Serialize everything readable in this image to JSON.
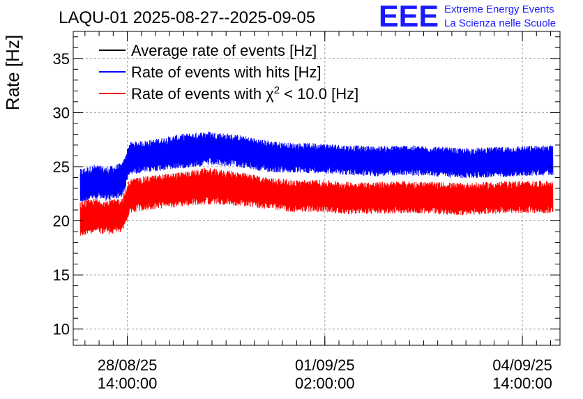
{
  "header": {
    "title": "LAQU-01 2025-08-27--2025-09-05",
    "logo_text": "EEE",
    "logo_line1": "Extreme Energy Events",
    "logo_line2": "La Scienza nelle Scuole"
  },
  "colors": {
    "average": "#000000",
    "hits": "#0000ff",
    "chi2": "#ff0000",
    "logo": "#1a1aff",
    "grid": "#a0a0a0"
  },
  "chart_data": {
    "type": "line",
    "title": "LAQU-01 2025-08-27--2025-09-05",
    "ylabel": "Rate [Hz]",
    "xlabel": "",
    "ylim": [
      8.5,
      37.5
    ],
    "xlim": [
      "2025-08-27T15:00:00",
      "2025-09-05T06:00:00"
    ],
    "grid": true,
    "legend_position": "top-left",
    "y_ticks": [
      10,
      15,
      20,
      25,
      30,
      35
    ],
    "x_ticks": [
      {
        "at": "2025-08-28T14:00:00",
        "line1": "28/08/25",
        "line2": "14:00:00"
      },
      {
        "at": "2025-09-01T02:00:00",
        "line1": "01/09/25",
        "line2": "02:00:00"
      },
      {
        "at": "2025-09-04T14:00:00",
        "line1": "04/09/25",
        "line2": "14:00:00"
      }
    ],
    "legend": [
      {
        "label_main": "Average rate of events [Hz]",
        "label_sup": "",
        "label_tail": "",
        "color": "#000000"
      },
      {
        "label_main": "Rate of events with hits [Hz]",
        "label_sup": "",
        "label_tail": "",
        "color": "#0000ff"
      },
      {
        "label_main": "Rate of events with χ",
        "label_sup": "2",
        "label_tail": " < 10.0 [Hz]",
        "color": "#ff0000"
      }
    ],
    "series": [
      {
        "name": "Rate of events with hits [Hz]",
        "color": "#0000ff",
        "x": [
          "2025-08-27T18:00:00",
          "2025-08-28T00:00:00",
          "2025-08-28T06:00:00",
          "2025-08-28T12:00:00",
          "2025-08-28T15:00:00",
          "2025-08-29T00:00:00",
          "2025-08-29T12:00:00",
          "2025-08-30T00:00:00",
          "2025-08-30T12:00:00",
          "2025-08-31T00:00:00",
          "2025-08-31T12:00:00",
          "2025-09-01T00:00:00",
          "2025-09-01T12:00:00",
          "2025-09-02T00:00:00",
          "2025-09-02T12:00:00",
          "2025-09-03T00:00:00",
          "2025-09-03T12:00:00",
          "2025-09-04T00:00:00",
          "2025-09-04T12:00:00",
          "2025-09-05T00:00:00",
          "2025-09-05T03:00:00"
        ],
        "values": [
          23.2,
          23.6,
          23.4,
          23.8,
          25.8,
          26.0,
          26.4,
          26.7,
          26.5,
          26.0,
          25.8,
          25.8,
          25.6,
          25.5,
          25.6,
          25.5,
          25.3,
          25.4,
          25.5,
          25.6,
          25.6
        ],
        "spread": [
          1.6,
          1.6,
          1.6,
          1.6,
          1.5,
          1.5,
          1.6,
          1.6,
          1.5,
          1.5,
          1.4,
          1.4,
          1.4,
          1.4,
          1.4,
          1.4,
          1.4,
          1.4,
          1.4,
          1.4,
          1.4
        ]
      },
      {
        "name": "Rate of events with χ2 < 10.0 [Hz]",
        "color": "#ff0000",
        "x": [
          "2025-08-27T18:00:00",
          "2025-08-28T00:00:00",
          "2025-08-28T06:00:00",
          "2025-08-28T12:00:00",
          "2025-08-28T15:00:00",
          "2025-08-29T00:00:00",
          "2025-08-29T12:00:00",
          "2025-08-30T00:00:00",
          "2025-08-30T12:00:00",
          "2025-08-31T00:00:00",
          "2025-08-31T12:00:00",
          "2025-09-01T00:00:00",
          "2025-09-01T12:00:00",
          "2025-09-02T00:00:00",
          "2025-09-02T12:00:00",
          "2025-09-03T00:00:00",
          "2025-09-03T12:00:00",
          "2025-09-04T00:00:00",
          "2025-09-04T12:00:00",
          "2025-09-05T00:00:00",
          "2025-09-05T03:00:00"
        ],
        "values": [
          20.2,
          20.5,
          20.3,
          20.6,
          22.3,
          22.6,
          22.9,
          23.2,
          23.0,
          22.6,
          22.3,
          22.3,
          22.1,
          22.1,
          22.2,
          22.1,
          22.0,
          22.1,
          22.2,
          22.2,
          22.2
        ],
        "spread": [
          1.6,
          1.6,
          1.6,
          1.6,
          1.6,
          1.6,
          1.6,
          1.7,
          1.6,
          1.5,
          1.5,
          1.5,
          1.5,
          1.5,
          1.5,
          1.5,
          1.5,
          1.5,
          1.5,
          1.5,
          1.5
        ]
      }
    ]
  }
}
